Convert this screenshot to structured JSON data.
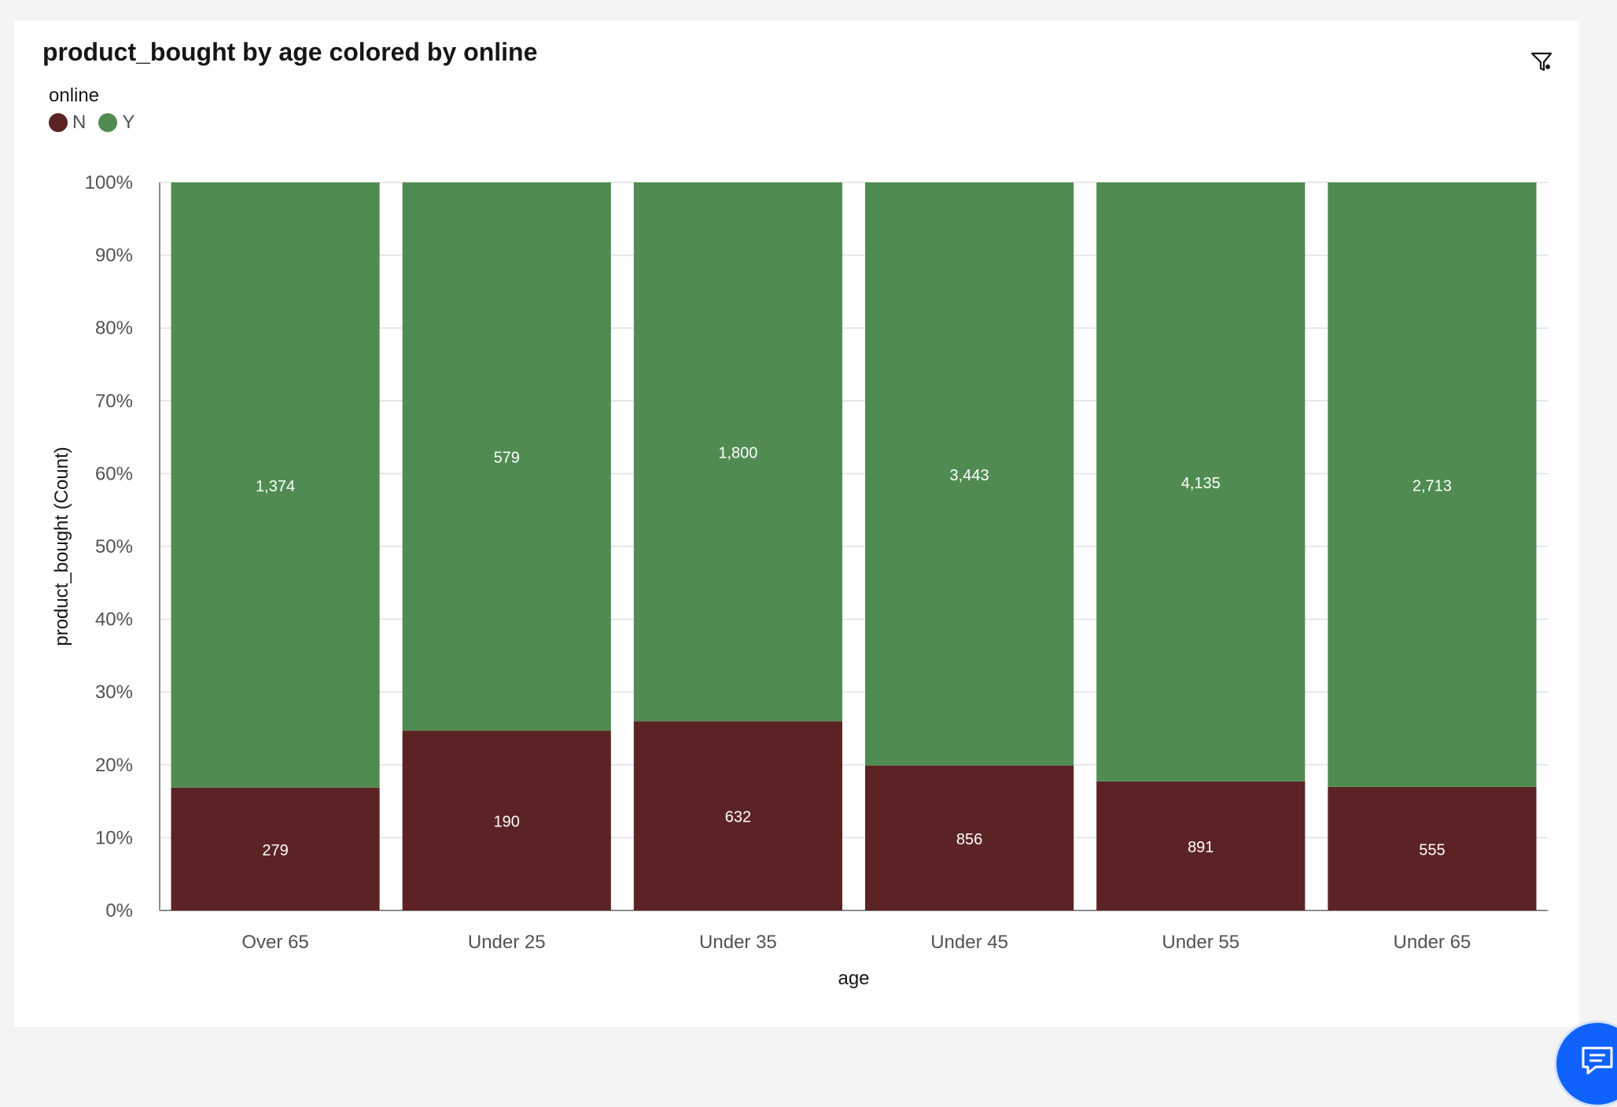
{
  "header": {
    "title": "product_bought by age colored by online"
  },
  "icons": {
    "filter": "filter-icon",
    "chat": "chat-icon"
  },
  "legend": {
    "title": "online",
    "items": [
      {
        "label": "N",
        "color": "#5c2325"
      },
      {
        "label": "Y",
        "color": "#508c52"
      }
    ]
  },
  "chart_data": {
    "type": "bar",
    "stacked": true,
    "normalized": true,
    "xlabel": "age",
    "ylabel": "product_bought (Count)",
    "ylim": [
      0,
      100
    ],
    "yticks": [
      "0%",
      "10%",
      "20%",
      "30%",
      "40%",
      "50%",
      "60%",
      "70%",
      "80%",
      "90%",
      "100%"
    ],
    "categories": [
      "Over 65",
      "Under 25",
      "Under 35",
      "Under 45",
      "Under 55",
      "Under 65"
    ],
    "series": [
      {
        "name": "N",
        "color": "#5c2325",
        "values": [
          279,
          190,
          632,
          856,
          891,
          555
        ],
        "labels": [
          "279",
          "190",
          "632",
          "856",
          "891",
          "555"
        ]
      },
      {
        "name": "Y",
        "color": "#508c52",
        "values": [
          1374,
          579,
          1800,
          3443,
          4135,
          2713
        ],
        "labels": [
          "1,374",
          "579",
          "1,800",
          "3,443",
          "4,135",
          "2,713"
        ]
      }
    ],
    "grid": true,
    "legend_position": "top-left"
  }
}
